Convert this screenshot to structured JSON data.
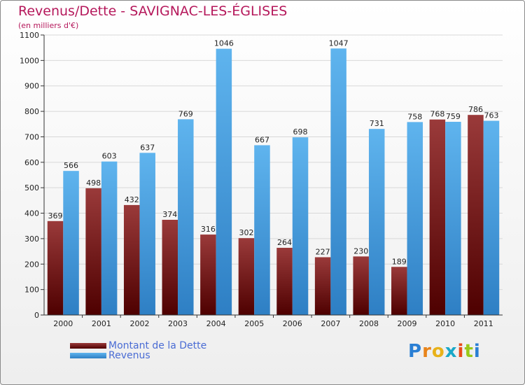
{
  "title": "Revenus/Dette - SAVIGNAC-LES-ÉGLISES",
  "subtitle": "(en milliers d'€)",
  "brand": {
    "text": "Proxiti",
    "letters": [
      "P",
      "r",
      "o",
      "x",
      "i",
      "t",
      "i"
    ]
  },
  "colors": {
    "dette_top": "#9a3a3a",
    "dette_bottom": "#4e0000",
    "revenus_top": "#5fb4ee",
    "revenus_bottom": "#2e7fc4",
    "title": "#b5185b",
    "legend_text": "#4a6cd4",
    "grid": "#d8d8d8",
    "axis": "#333333",
    "brand_letters": [
      "#2a7fd4",
      "#e8841a",
      "#e8b21a",
      "#1aa8c8",
      "#e84a1a",
      "#9ac81a",
      "#2a7fd4"
    ]
  },
  "chart_data": {
    "type": "bar",
    "categories": [
      "2000",
      "2001",
      "2002",
      "2003",
      "2004",
      "2005",
      "2006",
      "2007",
      "2008",
      "2009",
      "2010",
      "2011"
    ],
    "series": [
      {
        "name": "Montant de la Dette",
        "values": [
          369,
          498,
          432,
          374,
          316,
          302,
          264,
          227,
          230,
          189,
          768,
          786
        ]
      },
      {
        "name": "Revenus",
        "values": [
          566,
          603,
          637,
          769,
          1046,
          667,
          698,
          1047,
          731,
          758,
          759,
          763
        ]
      }
    ],
    "yticks": [
      0,
      100,
      200,
      300,
      400,
      500,
      600,
      700,
      800,
      900,
      1000,
      1100
    ],
    "ylim": [
      0,
      1100
    ],
    "grid": true,
    "legend_position": "bottom-left"
  }
}
